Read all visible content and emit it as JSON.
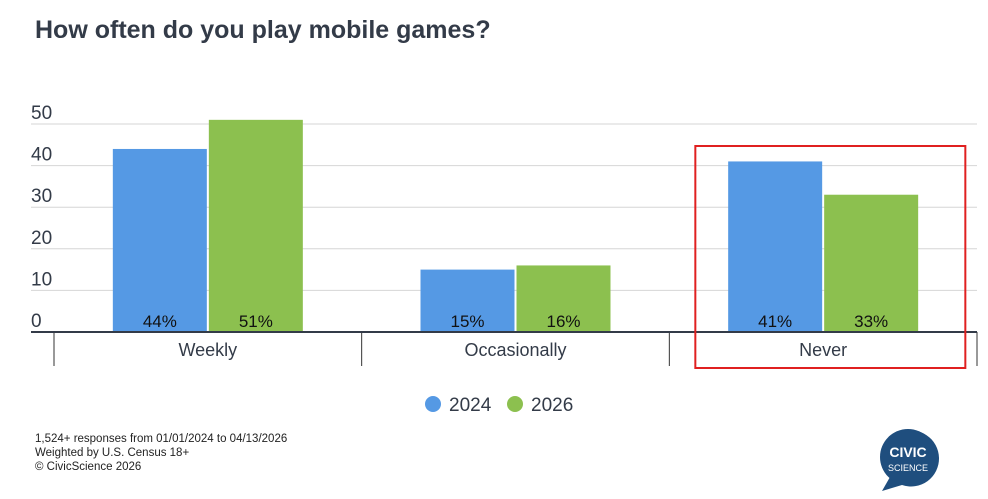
{
  "title": "How often do you play mobile games?",
  "footer": {
    "line1": "1,524+ responses from 01/01/2024 to 04/13/2026",
    "line2": "Weighted by U.S. Census 18+",
    "line3": "© CivicScience 2026"
  },
  "logo": {
    "line1": "CIVIC",
    "line2": "SCIENCE"
  },
  "colors": {
    "s2024": "#5599e4",
    "s2026": "#8cc04f",
    "highlight": "#e02020"
  },
  "chart_data": {
    "type": "bar",
    "title": "How often do you play mobile games?",
    "categories": [
      "Weekly",
      "Occasionally",
      "Never"
    ],
    "series": [
      {
        "name": "2024",
        "values": [
          44,
          15,
          41
        ],
        "labels": [
          "44%",
          "15%",
          "41%"
        ]
      },
      {
        "name": "2026",
        "values": [
          51,
          16,
          33
        ],
        "labels": [
          "51%",
          "16%",
          "33%"
        ]
      }
    ],
    "ylim": [
      0,
      50
    ],
    "yticks": [
      "0",
      "10",
      "20",
      "30",
      "40",
      "50"
    ],
    "grid": true,
    "legend": "bottom-center",
    "highlighted_category": "Never"
  }
}
